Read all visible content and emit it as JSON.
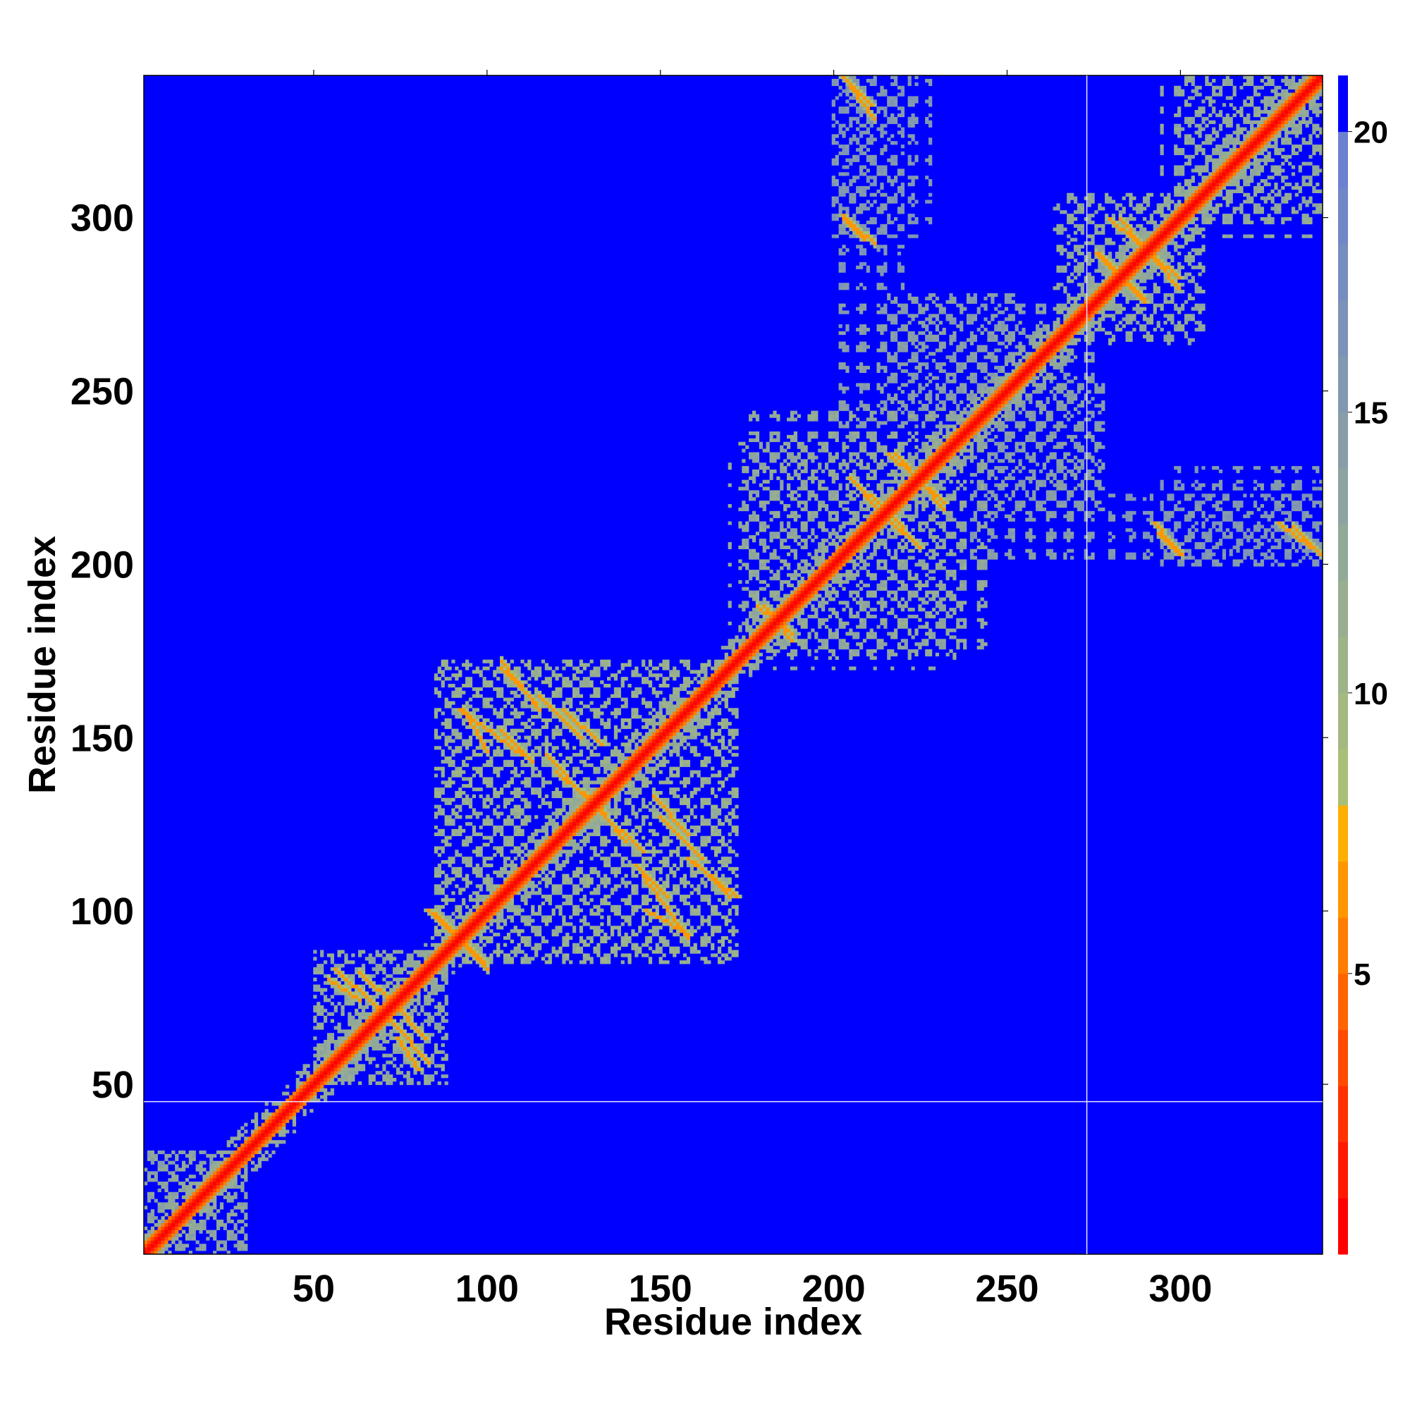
{
  "chart_data": {
    "type": "heatmap",
    "title": "",
    "xlabel": "Residue index",
    "ylabel": "Residue index",
    "xlim": [
      1,
      341
    ],
    "ylim": [
      1,
      341
    ],
    "xticks": [
      50,
      100,
      150,
      200,
      250,
      300
    ],
    "yticks": [
      50,
      100,
      150,
      200,
      250,
      300
    ],
    "n_residues": 341,
    "colorbar": {
      "ticks": [
        5,
        10,
        15,
        20
      ],
      "range": [
        0,
        21
      ],
      "levels": [
        {
          "from": 0,
          "to": 1,
          "color": "#ff0000"
        },
        {
          "from": 1,
          "to": 2,
          "color": "#ff1900"
        },
        {
          "from": 2,
          "to": 3,
          "color": "#ff3200"
        },
        {
          "from": 3,
          "to": 4,
          "color": "#ff4b00"
        },
        {
          "from": 4,
          "to": 5,
          "color": "#ff6400"
        },
        {
          "from": 5,
          "to": 6,
          "color": "#ff7d00"
        },
        {
          "from": 6,
          "to": 7,
          "color": "#ff9600"
        },
        {
          "from": 7,
          "to": 8,
          "color": "#ffaf00"
        },
        {
          "from": 8,
          "to": 9,
          "color": "#a8bf78"
        },
        {
          "from": 9,
          "to": 10,
          "color": "#a3b980"
        },
        {
          "from": 10,
          "to": 11,
          "color": "#9db488"
        },
        {
          "from": 11,
          "to": 12,
          "color": "#98ae90"
        },
        {
          "from": 12,
          "to": 13,
          "color": "#92a998"
        },
        {
          "from": 13,
          "to": 14,
          "color": "#8da3a0"
        },
        {
          "from": 14,
          "to": 15,
          "color": "#879da8"
        },
        {
          "from": 15,
          "to": 16,
          "color": "#8298b0"
        },
        {
          "from": 16,
          "to": 17,
          "color": "#7c92b8"
        },
        {
          "from": 17,
          "to": 18,
          "color": "#778dc0"
        },
        {
          "from": 18,
          "to": 19,
          "color": "#7187c8"
        },
        {
          "from": 19,
          "to": 20,
          "color": "#6c82d0"
        },
        {
          "from": 20,
          "to": 21,
          "color": "#0000ff"
        }
      ]
    },
    "background_value": 21,
    "diagonal_band_value": 2,
    "near_diagonal_value": 9,
    "off_diagonal_contacts": [
      {
        "x": [
          92,
          110
        ],
        "y": [
          158,
          145
        ],
        "value": 6
      },
      {
        "x": [
          104,
          114
        ],
        "y": [
          170,
          160
        ],
        "value": 6
      },
      {
        "x": [
          122,
          133
        ],
        "y": [
          158,
          148
        ],
        "value": 6
      },
      {
        "x": [
          120,
          134
        ],
        "y": [
          140,
          128
        ],
        "value": 6
      },
      {
        "x": [
          133,
          145
        ],
        "y": [
          128,
          117
        ],
        "value": 6
      },
      {
        "x": [
          150,
          162
        ],
        "y": [
          127,
          115
        ],
        "value": 6
      },
      {
        "x": [
          158,
          172
        ],
        "y": [
          115,
          104
        ],
        "value": 6
      },
      {
        "x": [
          143,
          152
        ],
        "y": [
          113,
          104
        ],
        "value": 6
      },
      {
        "x": [
          146,
          158
        ],
        "y": [
          100,
          93
        ],
        "value": 6
      },
      {
        "x": [
          83,
          90
        ],
        "y": [
          100,
          93
        ],
        "value": 6
      },
      {
        "x": [
          90,
          99
        ],
        "y": [
          94,
          85
        ],
        "value": 6
      },
      {
        "x": [
          56,
          68
        ],
        "y": [
          83,
          72
        ],
        "value": 6
      },
      {
        "x": [
          71,
          82
        ],
        "y": [
          75,
          63
        ],
        "value": 6
      },
      {
        "x": [
          74,
          80
        ],
        "y": [
          63,
          54
        ],
        "value": 6
      },
      {
        "x": [
          203,
          211
        ],
        "y": [
          341,
          333
        ],
        "value": 6
      },
      {
        "x": [
          203,
          209
        ],
        "y": [
          301,
          294
        ],
        "value": 6
      },
      {
        "x": [
          205,
          216
        ],
        "y": [
          225,
          215
        ],
        "value": 6
      },
      {
        "x": [
          216,
          232
        ],
        "y": [
          232,
          218
        ],
        "value": 6
      },
      {
        "x": [
          216,
          225
        ],
        "y": [
          213,
          205
        ],
        "value": 6
      },
      {
        "x": [
          180,
          188
        ],
        "y": [
          188,
          178
        ],
        "value": 6
      },
      {
        "x": [
          280,
          300
        ],
        "y": [
          300,
          283
        ],
        "value": 6
      },
      {
        "x": [
          277,
          290
        ],
        "y": [
          290,
          276
        ],
        "value": 6
      },
      {
        "x": [
          293,
          300
        ],
        "y": [
          212,
          203
        ],
        "value": 6
      },
      {
        "x": [
          329,
          338
        ],
        "y": [
          212,
          205
        ],
        "value": 6
      }
    ],
    "contact_regions": [
      {
        "x": [
          85,
          172
        ],
        "y": [
          82,
          172
        ],
        "value": 12
      },
      {
        "x": [
          50,
          88
        ],
        "y": [
          50,
          88
        ],
        "value": 13
      },
      {
        "x": [
          1,
          30
        ],
        "y": [
          1,
          30
        ],
        "value": 14
      },
      {
        "x": [
          170,
          245
        ],
        "y": [
          175,
          235
        ],
        "value": 13
      },
      {
        "x": [
          200,
          268
        ],
        "y": [
          240,
          275
        ],
        "value": 15
      },
      {
        "x": [
          262,
          308
        ],
        "y": [
          268,
          305
        ],
        "value": 13
      },
      {
        "x": [
          295,
          341
        ],
        "y": [
          300,
          341
        ],
        "value": 13
      },
      {
        "x": [
          199,
          220
        ],
        "y": [
          280,
          341
        ],
        "value": 16
      },
      {
        "x": [
          295,
          341
        ],
        "y": [
          200,
          228
        ],
        "value": 16
      },
      {
        "x": [
          240,
          280
        ],
        "y": [
          215,
          255
        ],
        "value": 15
      }
    ],
    "separator_lines": {
      "x": 273,
      "y": 45
    }
  }
}
